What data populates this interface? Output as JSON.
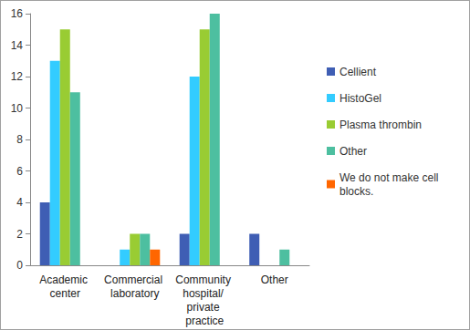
{
  "chart_data": {
    "type": "bar",
    "categories": [
      "Academic center",
      "Commercial laboratory",
      "Community hospital/ private practice",
      "Other"
    ],
    "series": [
      {
        "name": "Cellient",
        "color": "#3F5EB4",
        "values": [
          4,
          0,
          2,
          2
        ]
      },
      {
        "name": "HistoGel",
        "color": "#33CCFF",
        "values": [
          13,
          1,
          12,
          0
        ]
      },
      {
        "name": "Plasma thrombin",
        "color": "#99CC33",
        "values": [
          15,
          2,
          15,
          0
        ]
      },
      {
        "name": "Other",
        "color": "#4DBFA0",
        "values": [
          11,
          2,
          16,
          1
        ]
      },
      {
        "name": "We do not make cell blocks.",
        "color": "#FF6600",
        "values": [
          0,
          1,
          0,
          0
        ]
      }
    ],
    "ylim": [
      0,
      16
    ],
    "yticks": [
      0,
      2,
      4,
      6,
      8,
      10,
      12,
      14,
      16
    ],
    "grid": false,
    "legend": "right"
  }
}
